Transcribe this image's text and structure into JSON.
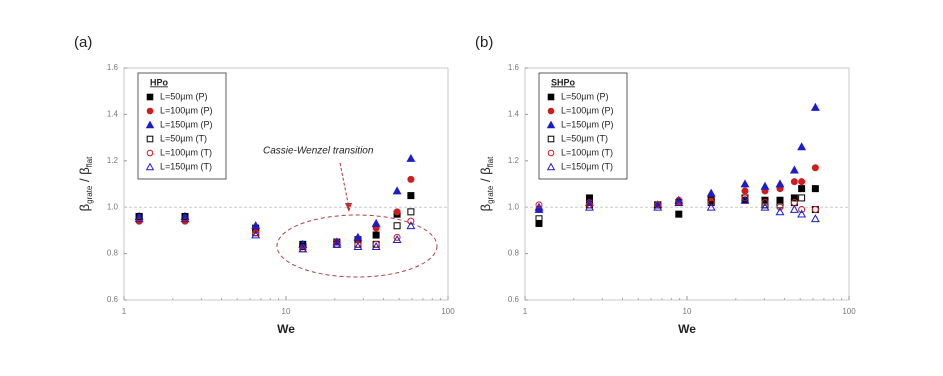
{
  "chart_data": [
    {
      "type": "scatter",
      "panel_label": "(a)",
      "legend_title": "HPo",
      "xlabel": "We",
      "ylabel": [
        "β",
        "grate",
        " / β",
        "flat"
      ],
      "annotation": "Cassie-Wenzel transition",
      "xscale": "log",
      "xlim": [
        1,
        100
      ],
      "xticks": [
        1,
        10,
        100
      ],
      "ylim": [
        0.6,
        1.6
      ],
      "yticks": [
        1.6,
        1.4,
        1.2,
        {
          "value": 1,
          "label": "1.0"
        },
        0.8,
        0.6
      ],
      "hline": 1,
      "legend": "upper left",
      "series": [
        {
          "name": "L=50µm (P)",
          "color": "#000000",
          "marker": "square",
          "filled": true,
          "x": [
            1.24,
            2.38,
            6.5,
            12.7,
            20.6,
            27.8,
            36,
            48.5,
            59
          ],
          "values": [
            0.96,
            0.96,
            0.91,
            0.84,
            0.85,
            0.86,
            0.88,
            0.97,
            1.05
          ]
        },
        {
          "name": "L=100µm (P)",
          "color": "#d01c1c",
          "marker": "circle",
          "filled": true,
          "x": [
            1.24,
            2.38,
            6.5,
            12.7,
            20.6,
            27.8,
            36,
            48.5,
            59
          ],
          "values": [
            0.94,
            0.94,
            0.9,
            0.83,
            0.85,
            0.86,
            0.91,
            0.98,
            1.12
          ]
        },
        {
          "name": "L=150µm (P)",
          "color": "#1c1ccc",
          "marker": "triangle",
          "filled": true,
          "x": [
            1.24,
            2.38,
            6.5,
            12.7,
            20.6,
            27.8,
            36,
            48.5,
            59
          ],
          "values": [
            0.96,
            0.96,
            0.92,
            0.84,
            0.85,
            0.87,
            0.93,
            1.07,
            1.21
          ]
        },
        {
          "name": "L=50µm (T)",
          "color": "#000000",
          "marker": "square",
          "filled": false,
          "x": [
            1.24,
            2.38,
            6.5,
            12.7,
            20.6,
            27.8,
            36,
            48.5,
            59
          ],
          "values": [
            0.96,
            0.96,
            0.89,
            0.83,
            0.84,
            0.84,
            0.84,
            0.92,
            0.98
          ]
        },
        {
          "name": "L=100µm (T)",
          "color": "#d01c1c",
          "marker": "circle",
          "filled": false,
          "x": [
            1.24,
            2.38,
            6.5,
            12.7,
            20.6,
            27.8,
            36,
            48.5,
            59
          ],
          "values": [
            0.94,
            0.94,
            0.89,
            0.82,
            0.84,
            0.84,
            0.84,
            0.87,
            0.94
          ]
        },
        {
          "name": "L=150µm (T)",
          "color": "#1c1ccc",
          "marker": "triangle",
          "filled": false,
          "x": [
            1.24,
            2.38,
            6.5,
            12.7,
            20.6,
            27.8,
            36,
            48.5,
            59
          ],
          "values": [
            0.95,
            0.95,
            0.88,
            0.82,
            0.84,
            0.83,
            0.83,
            0.86,
            0.92
          ]
        }
      ]
    },
    {
      "type": "scatter",
      "panel_label": "(b)",
      "legend_title": "SHPo",
      "xlabel": "We",
      "ylabel": [
        "β",
        "grate",
        " / β",
        "flat"
      ],
      "xscale": "log",
      "xlim": [
        1,
        100
      ],
      "xticks": [
        1,
        10,
        100
      ],
      "ylim": [
        0.6,
        1.6
      ],
      "yticks": [
        1.6,
        1.4,
        1.2,
        {
          "value": 1,
          "label": "1.0"
        },
        0.8,
        0.6
      ],
      "hline": 1,
      "legend": "upper left",
      "series": [
        {
          "name": "L=50µm (P)",
          "color": "#000000",
          "marker": "square",
          "filled": true,
          "x": [
            1.22,
            2.5,
            6.6,
            8.9,
            14.1,
            22.8,
            30.3,
            37.5,
            46,
            51,
            62
          ],
          "values": [
            0.93,
            1.04,
            1.01,
            0.97,
            1.02,
            1.03,
            1.03,
            1.03,
            1.04,
            1.08,
            1.08
          ]
        },
        {
          "name": "L=100µm (P)",
          "color": "#d01c1c",
          "marker": "circle",
          "filled": true,
          "x": [
            1.22,
            2.5,
            6.6,
            8.9,
            14.1,
            22.8,
            30.3,
            37.5,
            46,
            51,
            62
          ],
          "values": [
            0.99,
            1.02,
            1.01,
            1.02,
            1.04,
            1.07,
            1.07,
            1.08,
            1.11,
            1.11,
            1.17
          ]
        },
        {
          "name": "L=150µm (P)",
          "color": "#1c1ccc",
          "marker": "triangle",
          "filled": true,
          "x": [
            1.22,
            2.5,
            6.6,
            8.9,
            14.1,
            22.8,
            30.3,
            37.5,
            46,
            51,
            62
          ],
          "values": [
            0.99,
            1.02,
            1.01,
            1.03,
            1.06,
            1.1,
            1.09,
            1.1,
            1.16,
            1.26,
            1.43
          ]
        },
        {
          "name": "L=50µm (T)",
          "color": "#000000",
          "marker": "square",
          "filled": false,
          "x": [
            1.22,
            2.5,
            6.6,
            8.9,
            14.1,
            22.8,
            30.3,
            37.5,
            46,
            51,
            62
          ],
          "values": [
            0.95,
            1.01,
            1.01,
            1.02,
            1.03,
            1.04,
            1.01,
            1.01,
            1.02,
            1.04,
            0.99
          ]
        },
        {
          "name": "L=100µm (T)",
          "color": "#d01c1c",
          "marker": "circle",
          "filled": false,
          "x": [
            1.22,
            2.5,
            6.6,
            8.9,
            14.1,
            22.8,
            30.3,
            37.5,
            46,
            51,
            62
          ],
          "values": [
            1.01,
            1.01,
            1.01,
            1.03,
            1.02,
            1.04,
            1.02,
            1,
            1.02,
            0.99,
            0.99
          ]
        },
        {
          "name": "L=150µm (T)",
          "color": "#1c1ccc",
          "marker": "triangle",
          "filled": false,
          "x": [
            1.22,
            2.5,
            6.6,
            8.9,
            14.1,
            22.8,
            30.3,
            37.5,
            46,
            51,
            62
          ],
          "values": [
            1,
            1,
            1,
            1.02,
            1,
            1.03,
            1,
            0.98,
            0.99,
            0.97,
            0.95
          ]
        }
      ]
    }
  ]
}
